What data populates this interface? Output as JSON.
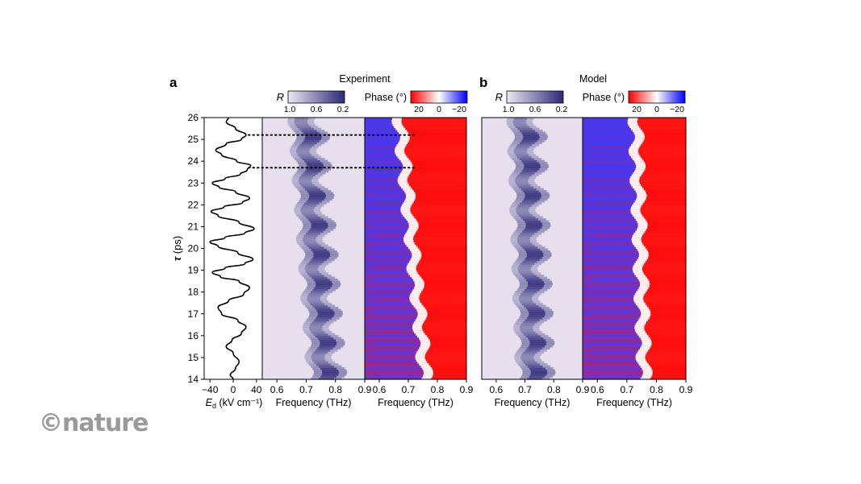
{
  "chart_data": [
    {
      "type": "line",
      "panel": "a",
      "panel_label": "a",
      "xlabel": "E_d (kV cm⁻¹)",
      "xlabel_italic": "E",
      "xlabel_sub": "d",
      "xlabel_rest": " (kV cm⁻¹)",
      "ylabel": "τ (ps)",
      "ylabel_sym": "τ",
      "ylabel_unit": " (ps)",
      "xlim": [
        -50,
        50
      ],
      "ylim": [
        14,
        26
      ],
      "x_ticks": [
        "−40",
        "0",
        "40"
      ],
      "y_ticks": [
        "14",
        "15",
        "16",
        "17",
        "18",
        "19",
        "20",
        "21",
        "22",
        "23",
        "24",
        "25",
        "26"
      ],
      "series": [
        {
          "points": [
            [
              0,
              14.0
            ],
            [
              -5,
              14.2
            ],
            [
              4,
              14.5
            ],
            [
              10,
              14.8
            ],
            [
              0,
              15.2
            ],
            [
              -12,
              15.5
            ],
            [
              -2,
              15.8
            ],
            [
              14,
              16.1
            ],
            [
              22,
              16.4
            ],
            [
              8,
              16.7
            ],
            [
              -20,
              17.0
            ],
            [
              -26,
              17.3
            ],
            [
              -8,
              17.6
            ],
            [
              18,
              17.9
            ],
            [
              28,
              18.2
            ],
            [
              10,
              18.5
            ],
            [
              -22,
              18.7
            ],
            [
              -36,
              18.9
            ],
            [
              -14,
              19.1
            ],
            [
              20,
              19.3
            ],
            [
              34,
              19.5
            ],
            [
              8,
              19.8
            ],
            [
              -26,
              20.1
            ],
            [
              -40,
              20.3
            ],
            [
              -14,
              20.5
            ],
            [
              20,
              20.7
            ],
            [
              36,
              20.9
            ],
            [
              10,
              21.2
            ],
            [
              -26,
              21.5
            ],
            [
              -38,
              21.7
            ],
            [
              -16,
              21.9
            ],
            [
              16,
              22.1
            ],
            [
              28,
              22.3
            ],
            [
              4,
              22.6
            ],
            [
              -24,
              22.8
            ],
            [
              -36,
              23.0
            ],
            [
              -14,
              23.2
            ],
            [
              12,
              23.4
            ],
            [
              24,
              23.6
            ],
            [
              30,
              23.8
            ],
            [
              6,
              24.0
            ],
            [
              -20,
              24.3
            ],
            [
              -30,
              24.5
            ],
            [
              -12,
              24.8
            ],
            [
              14,
              25.0
            ],
            [
              22,
              25.2
            ],
            [
              4,
              25.5
            ],
            [
              -12,
              25.8
            ],
            [
              -8,
              26.0
            ]
          ]
        }
      ]
    },
    {
      "type": "heatmap",
      "panel": "a",
      "group_title": "Experiment",
      "quantity_label": "R",
      "colorbar_ticks": [
        "1.0",
        "0.6",
        "0.2"
      ],
      "colors": [
        "#ece8f2",
        "#2e2878"
      ],
      "xlabel": "Frequency (THz)",
      "x_ticks": [
        "0.6",
        "0.7",
        "0.8",
        "0.9"
      ],
      "xlim": [
        0.55,
        0.9
      ],
      "ylim": [
        14,
        26
      ],
      "band_center_at_14": 0.765,
      "band_center_at_26": 0.7,
      "stripe_period_ps": 1.35,
      "guide_lines_tau": [
        25.2,
        23.7
      ]
    },
    {
      "type": "heatmap",
      "panel": "a",
      "quantity_label": "Phase (°)",
      "colorbar_ticks": [
        "20",
        "0",
        "−20"
      ],
      "colors": [
        "#ff0000",
        "#ffffff",
        "#0000ff"
      ],
      "xlabel": "Frequency (THz)",
      "x_ticks": [
        "0.6",
        "0.7",
        "0.8",
        "0.9"
      ],
      "xlim": [
        0.55,
        0.9
      ],
      "ylim": [
        14,
        26
      ],
      "boundary_at_14": 0.76,
      "boundary_at_26": 0.67
    },
    {
      "type": "heatmap",
      "panel": "b",
      "panel_label": "b",
      "group_title": "Model",
      "quantity_label": "R",
      "colorbar_ticks": [
        "1.0",
        "0.6",
        "0.2"
      ],
      "colors": [
        "#ece8f2",
        "#2e2878"
      ],
      "xlabel": "Frequency (THz)",
      "x_ticks": [
        "0.6",
        "0.7",
        "0.8",
        "0.9"
      ],
      "xlim": [
        0.55,
        0.9
      ],
      "ylim": [
        14,
        26
      ],
      "band_center_at_14": 0.73,
      "band_center_at_26": 0.7,
      "stripe_period_ps": 1.35
    },
    {
      "type": "heatmap",
      "panel": "b",
      "quantity_label": "Phase (°)",
      "colorbar_ticks": [
        "20",
        "0",
        "−20"
      ],
      "colors": [
        "#ff0000",
        "#ffffff",
        "#0000ff"
      ],
      "xlabel": "Frequency (THz)",
      "x_ticks": [
        "0.6",
        "0.7",
        "0.8",
        "0.9"
      ],
      "xlim": [
        0.55,
        0.9
      ],
      "ylim": [
        14,
        26
      ],
      "boundary_at_14": 0.76,
      "boundary_at_26": 0.73
    }
  ],
  "watermark": "©nature"
}
